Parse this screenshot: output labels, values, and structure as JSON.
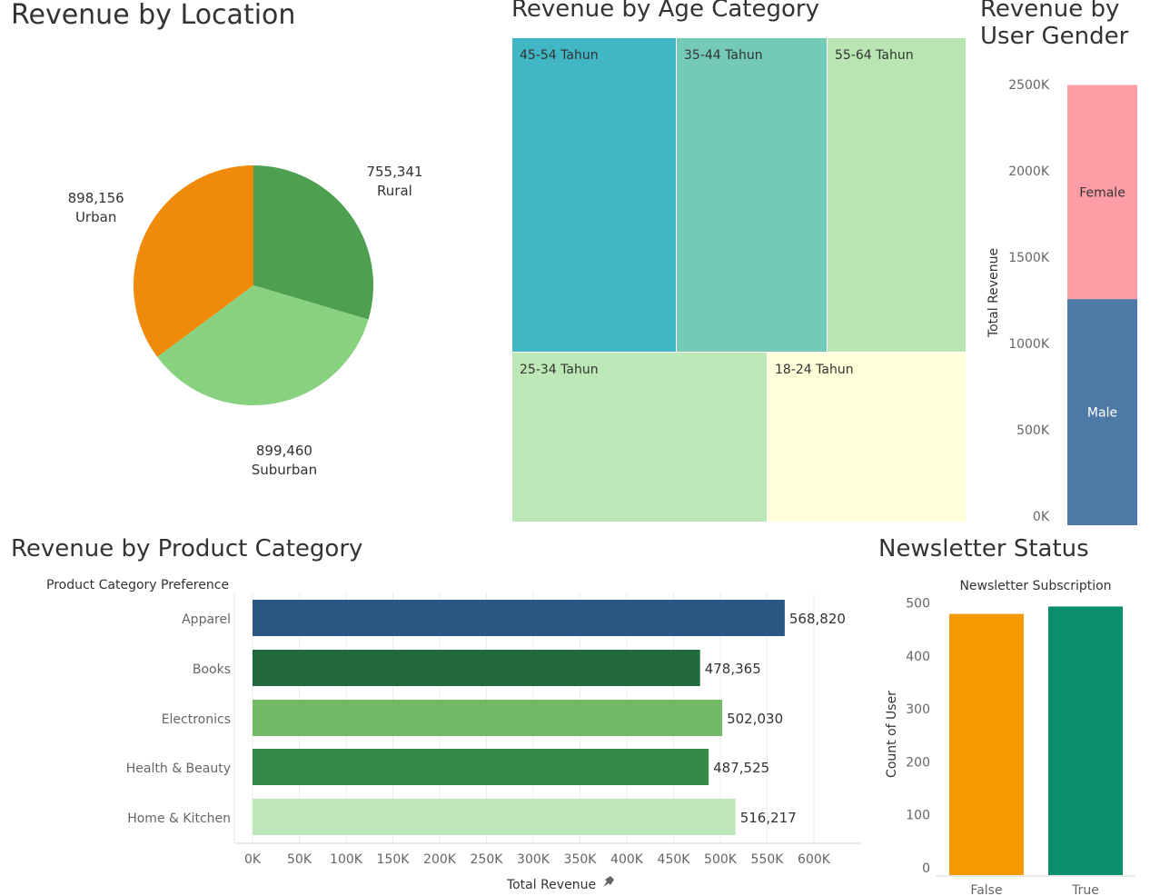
{
  "titles": {
    "location": "Revenue by  Location",
    "age": "Revenue by Age Category",
    "gender_line1": "Revenue by",
    "gender_line2": "User Gender",
    "product": "Revenue by Product Category",
    "newsletter": "Newsletter Status"
  },
  "colors": {
    "urban": "#f08a0b",
    "suburban": "#88d27f",
    "rural": "#4e9f50",
    "age_45_54": "#41b6c4",
    "age_35_44": "#74c9b7",
    "age_55_64": "#b8e5b2",
    "age_25_34": "#bce7b6",
    "age_18_24": "#ffffd9",
    "female": "#ff9da7",
    "male": "#4e79a7",
    "apparel": "#2b5784",
    "books": "#226a3e",
    "electronics": "#72b965",
    "health": "#358a47",
    "home": "#bee8b9",
    "nl_false": "#f69800",
    "nl_true": "#098f6b"
  },
  "chart_data": [
    {
      "type": "pie",
      "slices": [
        {
          "label": "Rural",
          "value": 755341,
          "value_text": "755,341"
        },
        {
          "label": "Suburban",
          "value": 899460,
          "value_text": "899,460"
        },
        {
          "label": "Urban",
          "value": 898156,
          "value_text": "898,156"
        }
      ]
    },
    {
      "type": "treemap",
      "items": [
        {
          "label": "45-54 Tahun"
        },
        {
          "label": "35-44 Tahun"
        },
        {
          "label": "55-64 Tahun"
        },
        {
          "label": "25-34 Tahun"
        },
        {
          "label": "18-24 Tahun"
        }
      ]
    },
    {
      "type": "bar",
      "stacked": true,
      "ylabel": "Total Revenue",
      "yticks": [
        "0K",
        "500K",
        "1000K",
        "1500K",
        "2000K",
        "2500K"
      ],
      "ylim": [
        0,
        2550000
      ],
      "series": [
        {
          "name": "Male",
          "value": 1310000
        },
        {
          "name": "Female",
          "value": 1240000
        }
      ]
    },
    {
      "type": "bar",
      "orientation": "horizontal",
      "ylabel": "Product Category Preference",
      "xlabel": "Total Revenue",
      "categories": [
        "Apparel",
        "Books",
        "Electronics",
        "Health & Beauty",
        "Home & Kitchen"
      ],
      "values": [
        568820,
        478365,
        502030,
        487525,
        516217
      ],
      "value_labels": [
        "568,820",
        "478,365",
        "502,030",
        "487,525",
        "516,217"
      ],
      "xticks": [
        "0K",
        "50K",
        "100K",
        "150K",
        "200K",
        "250K",
        "300K",
        "350K",
        "400K",
        "450K",
        "500K",
        "550K",
        "600K"
      ],
      "xlim": [
        0,
        650000
      ]
    },
    {
      "type": "bar",
      "title": "Newsletter Subscription",
      "ylabel": "Count of User",
      "categories": [
        "False",
        "True"
      ],
      "values": [
        493,
        507
      ],
      "yticks": [
        "0",
        "100",
        "200",
        "300",
        "400",
        "500"
      ],
      "ylim": [
        0,
        520
      ]
    }
  ]
}
